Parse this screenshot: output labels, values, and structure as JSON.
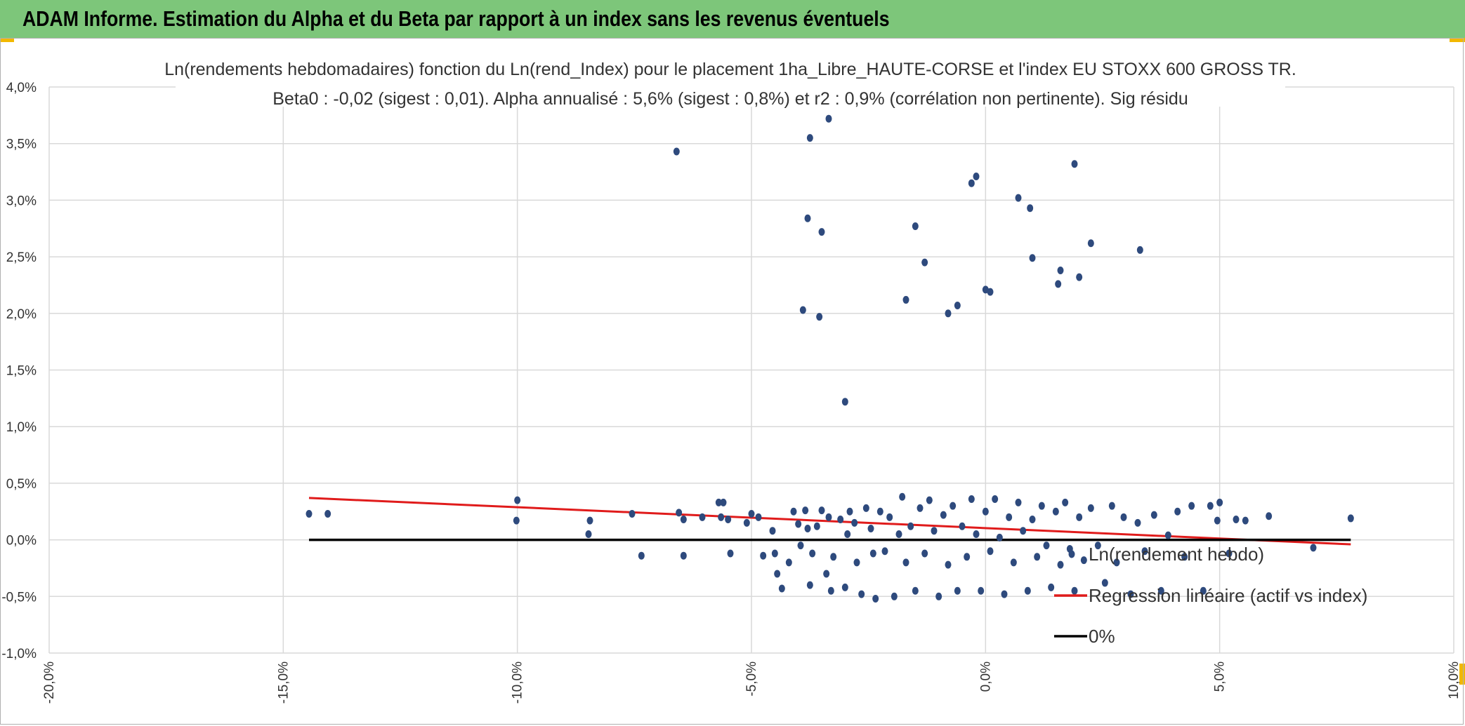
{
  "header": {
    "title": "ADAM Informe. Estimation du Alpha et du Beta par rapport à un index sans les revenus éventuels"
  },
  "colors": {
    "banner": "#7dc67a",
    "corner_accent": "#f2b800",
    "points": "#2e4a7d",
    "regression": "#e01b1b",
    "zero_line": "#000000",
    "grid": "#d9d9d9"
  },
  "chart_data": {
    "type": "scatter",
    "title": "Ln(rendements hebdomadaires) fonction du Ln(rend_Index) pour le placement 1ha_Libre_HAUTE-CORSE et l'index EU STOXX 600 GROSS TR.",
    "subtitle": "Beta0 : -0,02 (sigest : 0,01). Alpha annualisé : 5,6% (sigest : 0,8%) et r2 : 0,9% (corrélation non pertinente). Sig résidu",
    "xlabel": "",
    "ylabel": "",
    "xlim": [
      -0.2,
      0.1
    ],
    "ylim": [
      -0.01,
      0.04
    ],
    "grid": true,
    "legend_position": "bottom-right",
    "x_ticks": [
      -0.2,
      -0.15,
      -0.1,
      -0.05,
      0.0,
      0.05,
      0.1
    ],
    "x_tick_labels": [
      "-20,0%",
      "-15,0%",
      "-10,0%",
      "-5,0%",
      "0,0%",
      "5,0%",
      "10,0%"
    ],
    "y_ticks": [
      -0.01,
      -0.005,
      0.0,
      0.005,
      0.01,
      0.015,
      0.02,
      0.025,
      0.03,
      0.035,
      0.04
    ],
    "y_tick_labels": [
      "-1,0%",
      "-0,5%",
      "0,0%",
      "0,5%",
      "1,0%",
      "1,5%",
      "2,0%",
      "2,5%",
      "3,0%",
      "3,5%",
      "4,0%"
    ],
    "series": [
      {
        "name": "Ln(rendement hebdo)",
        "kind": "scatter",
        "points": [
          [
            -0.1445,
            0.0023
          ],
          [
            -0.1405,
            0.0023
          ],
          [
            -0.1,
            0.0035
          ],
          [
            -0.1002,
            0.0017
          ],
          [
            -0.0845,
            0.0017
          ],
          [
            -0.0848,
            0.0005
          ],
          [
            -0.0755,
            0.0023
          ],
          [
            -0.0735,
            -0.0014
          ],
          [
            -0.0655,
            0.0024
          ],
          [
            -0.0645,
            0.0018
          ],
          [
            -0.0645,
            -0.0014
          ],
          [
            -0.0605,
            0.002
          ],
          [
            -0.057,
            0.0033
          ],
          [
            -0.056,
            0.0033
          ],
          [
            -0.0565,
            0.002
          ],
          [
            -0.055,
            0.0018
          ],
          [
            -0.0545,
            -0.0012
          ],
          [
            -0.051,
            0.0015
          ],
          [
            -0.05,
            0.0023
          ],
          [
            -0.0485,
            0.002
          ],
          [
            -0.0475,
            -0.0014
          ],
          [
            -0.0455,
            0.0008
          ],
          [
            -0.045,
            -0.0012
          ],
          [
            -0.0445,
            -0.003
          ],
          [
            -0.0435,
            -0.0043
          ],
          [
            -0.042,
            -0.002
          ],
          [
            -0.041,
            0.0025
          ],
          [
            -0.04,
            0.0014
          ],
          [
            -0.0395,
            -0.0005
          ],
          [
            -0.0385,
            0.0026
          ],
          [
            -0.038,
            0.001
          ],
          [
            -0.0375,
            -0.004
          ],
          [
            -0.037,
            -0.0012
          ],
          [
            -0.036,
            0.0012
          ],
          [
            -0.035,
            0.0026
          ],
          [
            -0.034,
            -0.003
          ],
          [
            -0.0335,
            0.002
          ],
          [
            -0.033,
            -0.0045
          ],
          [
            -0.0325,
            -0.0015
          ],
          [
            -0.031,
            0.0018
          ],
          [
            -0.03,
            -0.0042
          ],
          [
            -0.0295,
            0.0005
          ],
          [
            -0.029,
            0.0025
          ],
          [
            -0.028,
            0.0015
          ],
          [
            -0.0275,
            -0.002
          ],
          [
            -0.0265,
            -0.0048
          ],
          [
            -0.0255,
            0.0028
          ],
          [
            -0.0245,
            0.001
          ],
          [
            -0.024,
            -0.0012
          ],
          [
            -0.0235,
            -0.0052
          ],
          [
            -0.0225,
            0.0025
          ],
          [
            -0.0215,
            -0.001
          ],
          [
            -0.0205,
            0.002
          ],
          [
            -0.0195,
            -0.005
          ],
          [
            -0.0185,
            0.0005
          ],
          [
            -0.0178,
            0.0038
          ],
          [
            -0.017,
            -0.002
          ],
          [
            -0.016,
            0.0012
          ],
          [
            -0.015,
            -0.0045
          ],
          [
            -0.014,
            0.0028
          ],
          [
            -0.013,
            -0.0012
          ],
          [
            -0.012,
            0.0035
          ],
          [
            -0.011,
            0.0008
          ],
          [
            -0.01,
            -0.005
          ],
          [
            -0.009,
            0.0022
          ],
          [
            -0.008,
            -0.0022
          ],
          [
            -0.007,
            0.003
          ],
          [
            -0.006,
            -0.0045
          ],
          [
            -0.005,
            0.0012
          ],
          [
            -0.004,
            -0.0015
          ],
          [
            -0.003,
            0.0036
          ],
          [
            -0.002,
            0.0005
          ],
          [
            -0.001,
            -0.0045
          ],
          [
            0.0,
            0.0025
          ],
          [
            0.001,
            -0.001
          ],
          [
            0.002,
            0.0036
          ],
          [
            0.003,
            0.0002
          ],
          [
            0.004,
            -0.0048
          ],
          [
            0.005,
            0.002
          ],
          [
            0.006,
            -0.002
          ],
          [
            0.007,
            0.0033
          ],
          [
            0.008,
            0.0008
          ],
          [
            0.009,
            -0.0045
          ],
          [
            0.01,
            0.0018
          ],
          [
            0.011,
            -0.0015
          ],
          [
            0.012,
            0.003
          ],
          [
            0.013,
            -0.0005
          ],
          [
            0.014,
            -0.0042
          ],
          [
            0.015,
            0.0025
          ],
          [
            0.016,
            -0.0022
          ],
          [
            0.017,
            0.0033
          ],
          [
            0.018,
            -0.0008
          ],
          [
            0.019,
            -0.0045
          ],
          [
            0.02,
            0.002
          ],
          [
            0.021,
            -0.0018
          ],
          [
            0.0225,
            0.0028
          ],
          [
            0.024,
            -0.0005
          ],
          [
            0.0255,
            -0.0038
          ],
          [
            0.027,
            0.003
          ],
          [
            0.028,
            -0.002
          ],
          [
            0.0295,
            0.002
          ],
          [
            0.031,
            -0.0048
          ],
          [
            0.0325,
            0.0015
          ],
          [
            0.034,
            -0.001
          ],
          [
            0.036,
            0.0022
          ],
          [
            0.0375,
            -0.0045
          ],
          [
            0.039,
            0.0004
          ],
          [
            0.041,
            0.0025
          ],
          [
            0.0425,
            -0.0015
          ],
          [
            0.044,
            0.003
          ],
          [
            0.0465,
            -0.0045
          ],
          [
            0.048,
            0.003
          ],
          [
            0.0495,
            0.0017
          ],
          [
            0.05,
            0.0033
          ],
          [
            0.052,
            -0.0012
          ],
          [
            0.0535,
            0.0018
          ],
          [
            0.0555,
            0.0017
          ],
          [
            0.0605,
            0.0021
          ],
          [
            0.07,
            -0.0007
          ],
          [
            0.078,
            0.0019
          ],
          [
            -0.066,
            0.0343
          ],
          [
            -0.0375,
            0.0355
          ],
          [
            -0.0335,
            0.0372
          ],
          [
            -0.038,
            0.0284
          ],
          [
            -0.035,
            0.0272
          ],
          [
            -0.039,
            0.0203
          ],
          [
            -0.0355,
            0.0197
          ],
          [
            -0.03,
            0.0122
          ],
          [
            -0.015,
            0.0277
          ],
          [
            -0.013,
            0.0245
          ],
          [
            -0.017,
            0.0212
          ],
          [
            -0.008,
            0.02
          ],
          [
            -0.006,
            0.0207
          ],
          [
            -0.003,
            0.0315
          ],
          [
            -0.002,
            0.0321
          ],
          [
            0.0,
            0.0221
          ],
          [
            0.001,
            0.0219
          ],
          [
            0.007,
            0.0302
          ],
          [
            0.0095,
            0.0293
          ],
          [
            0.01,
            0.0249
          ],
          [
            0.0155,
            0.0226
          ],
          [
            0.016,
            0.0238
          ],
          [
            0.019,
            0.0332
          ],
          [
            0.02,
            0.0232
          ],
          [
            0.0225,
            0.0262
          ],
          [
            0.033,
            0.0256
          ]
        ]
      },
      {
        "name": "Regression linéaire (actif vs index)",
        "kind": "line",
        "points": [
          [
            -0.1445,
            0.0037
          ],
          [
            0.078,
            -0.0004
          ]
        ]
      },
      {
        "name": "0%",
        "kind": "line",
        "points": [
          [
            -0.1445,
            0.0
          ],
          [
            0.078,
            0.0
          ]
        ]
      }
    ],
    "legend": [
      {
        "label": "Ln(rendement hebdo)",
        "marker": "dot"
      },
      {
        "label": "Regression linéaire (actif vs index)",
        "marker": "red-line"
      },
      {
        "label": "0%",
        "marker": "black-line"
      }
    ]
  }
}
